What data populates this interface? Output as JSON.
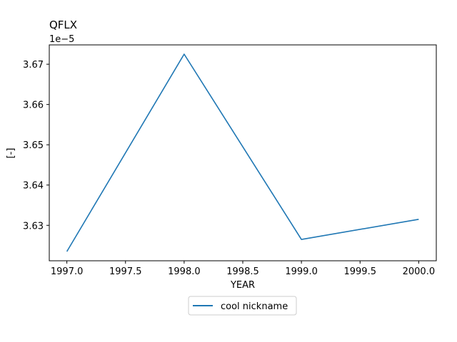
{
  "chart_data": {
    "type": "line",
    "title": "QFLX",
    "xlabel": "YEAR",
    "ylabel": "[-]",
    "y_offset_label": "1e−5",
    "x": [
      1997.0,
      1998.0,
      1999.0,
      2000.0
    ],
    "series": [
      {
        "name": "cool nickname",
        "values": [
          3.6235,
          3.6725,
          3.6265,
          3.6315
        ],
        "color": "#1f77b4"
      }
    ],
    "xlim": [
      1996.85,
      2000.15
    ],
    "ylim": [
      3.6212,
      3.6748
    ],
    "xticks": [
      "1997.0",
      "1997.5",
      "1998.0",
      "1998.5",
      "1999.0",
      "1999.5",
      "2000.0"
    ],
    "yticks": [
      "3.63",
      "3.64",
      "3.65",
      "3.66",
      "3.67"
    ],
    "grid": false,
    "legend": "bottom-center"
  }
}
